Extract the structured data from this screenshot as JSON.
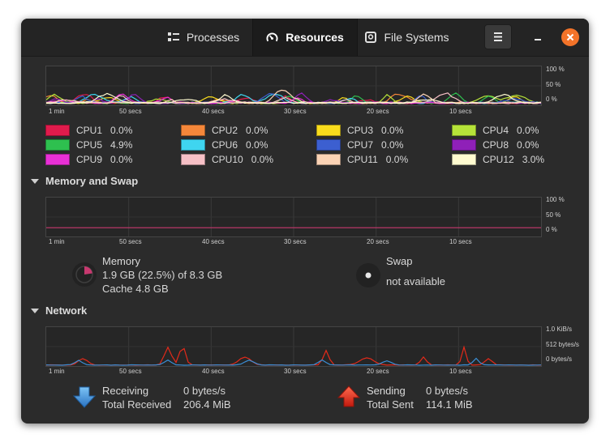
{
  "tabs": [
    {
      "label": "Processes",
      "icon": "processes-list-icon"
    },
    {
      "label": "Resources",
      "icon": "gauge-icon",
      "active": true
    },
    {
      "label": "File Systems",
      "icon": "disk-icon"
    }
  ],
  "cpu": {
    "percent_labels": [
      "100 %",
      "50 %",
      "0 %"
    ],
    "time_labels": [
      "1 min",
      "50 secs",
      "40 secs",
      "30 secs",
      "20 secs",
      "10 secs"
    ],
    "items": [
      {
        "name": "CPU1",
        "value": "0.0%",
        "color": "#e01b4c"
      },
      {
        "name": "CPU2",
        "value": "0.0%",
        "color": "#f5873a"
      },
      {
        "name": "CPU3",
        "value": "0.0%",
        "color": "#f9dc1c"
      },
      {
        "name": "CPU4",
        "value": "0.0%",
        "color": "#b6e339"
      },
      {
        "name": "CPU5",
        "value": "4.9%",
        "color": "#2ec04f"
      },
      {
        "name": "CPU6",
        "value": "0.0%",
        "color": "#3fd5f0"
      },
      {
        "name": "CPU7",
        "value": "0.0%",
        "color": "#3c5fd0"
      },
      {
        "name": "CPU8",
        "value": "0.0%",
        "color": "#8f20b8"
      },
      {
        "name": "CPU9",
        "value": "0.0%",
        "color": "#e830d6"
      },
      {
        "name": "CPU10",
        "value": "0.0%",
        "color": "#f6c0c6"
      },
      {
        "name": "CPU11",
        "value": "0.0%",
        "color": "#fbd3b5"
      },
      {
        "name": "CPU12",
        "value": "3.0%",
        "color": "#fffbd0"
      }
    ]
  },
  "memory": {
    "section_title": "Memory and Swap",
    "percent_labels": [
      "100 %",
      "50 %",
      "0 %"
    ],
    "time_labels": [
      "1 min",
      "50 secs",
      "40 secs",
      "30 secs",
      "20 secs",
      "10 secs"
    ],
    "memory_label": "Memory",
    "memory_used": "1.9 GB (22.5%) of 8.3 GB",
    "memory_cache": "Cache 4.8 GB",
    "memory_fraction": 0.225,
    "swap_label": "Swap",
    "swap_status": "not available",
    "memory_color": "#c7396f"
  },
  "network": {
    "section_title": "Network",
    "rate_labels": [
      "1.0 KiB/s",
      "512 bytes/s",
      "0 bytes/s"
    ],
    "time_labels": [
      "1 min",
      "50 secs",
      "40 secs",
      "30 secs",
      "20 secs",
      "10 secs"
    ],
    "receiving_label": "Receiving",
    "receiving_value": "0 bytes/s",
    "total_received_label": "Total Received",
    "total_received_value": "206.4 MiB",
    "sending_label": "Sending",
    "sending_value": "0 bytes/s",
    "total_sent_label": "Total Sent",
    "total_sent_value": "114.1 MiB",
    "receive_color": "#3b8fd6",
    "send_color": "#e32a1a"
  }
}
